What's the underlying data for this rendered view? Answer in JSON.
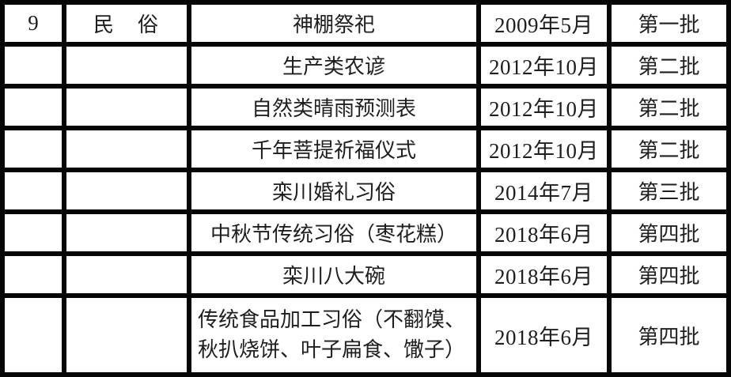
{
  "table": {
    "rows": [
      {
        "no": "9",
        "category": "民　俗",
        "name": "神棚祭祀",
        "date": "2009年5月",
        "batch": "第一批"
      },
      {
        "no": "",
        "category": "",
        "name": "生产类农谚",
        "date": "2012年10月",
        "batch": "第二批"
      },
      {
        "no": "",
        "category": "",
        "name": "自然类晴雨预测表",
        "date": "2012年10月",
        "batch": "第二批"
      },
      {
        "no": "",
        "category": "",
        "name": "千年菩提祈福仪式",
        "date": "2012年10月",
        "batch": "第二批"
      },
      {
        "no": "",
        "category": "",
        "name": "栾川婚礼习俗",
        "date": "2014年7月",
        "batch": "第三批"
      },
      {
        "no": "",
        "category": "",
        "name": "中秋节传统习俗（枣花糕）",
        "date": "2018年6月",
        "batch": "第四批"
      },
      {
        "no": "",
        "category": "",
        "name": "栾川八大碗",
        "date": "2018年6月",
        "batch": "第四批"
      },
      {
        "no": "",
        "category": "",
        "name": "传统食品加工习俗（不翻馍、秋扒烧饼、叶子扁食、馓子）",
        "date": "2018年6月",
        "batch": "第四批"
      }
    ]
  },
  "colors": {
    "grid_border": "#050505",
    "cell_background": "#ffffff",
    "text": "#1e1e1e"
  }
}
